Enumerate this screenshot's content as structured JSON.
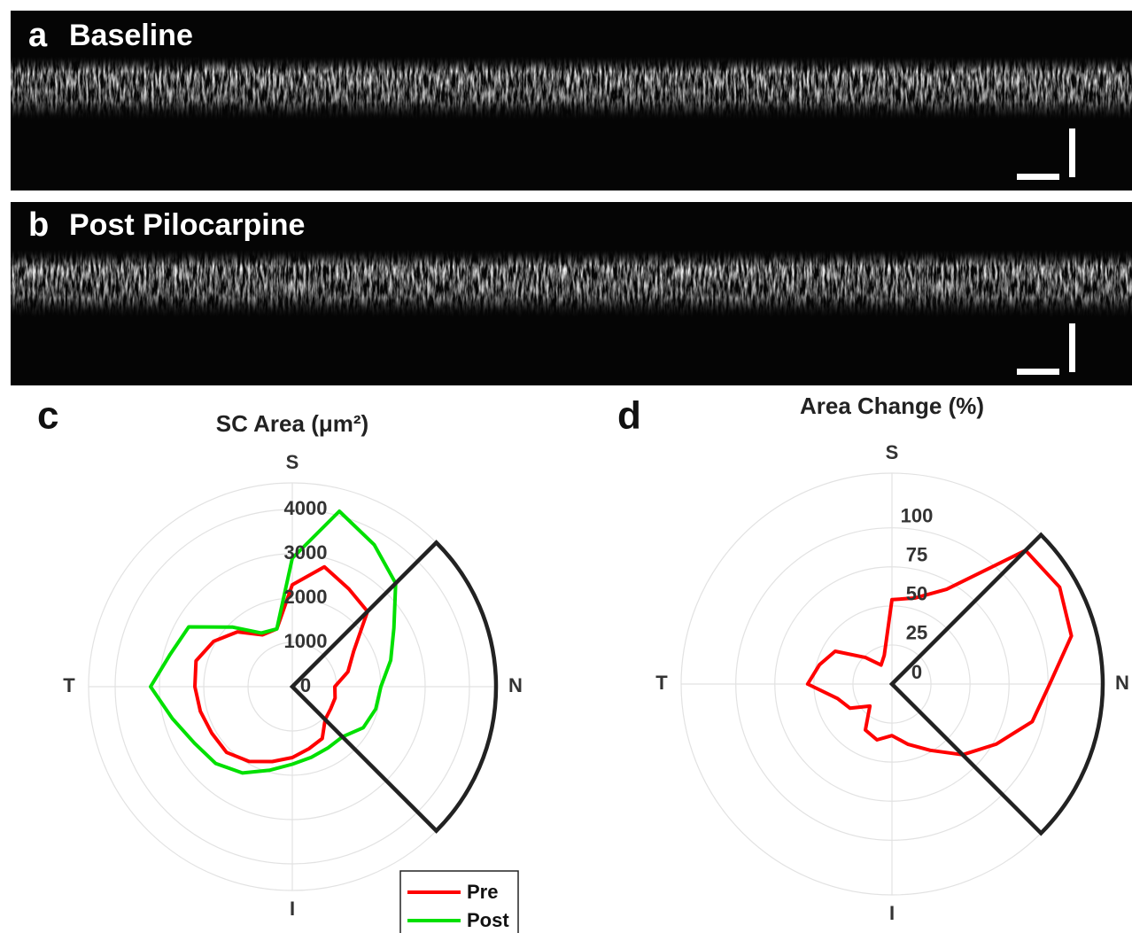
{
  "panels": [
    {
      "letter": "a",
      "title": "Baseline"
    },
    {
      "letter": "b",
      "title": "Post Pilocarpine"
    }
  ],
  "chart_data": [
    {
      "type": "polar",
      "panel": "c",
      "title": "SC Area (μm²)",
      "theta": [
        0,
        15,
        30,
        45,
        60,
        75,
        90,
        105,
        120,
        135,
        150,
        165,
        180,
        195,
        210,
        225,
        240,
        255,
        270,
        285,
        300,
        315,
        330,
        345
      ],
      "series": [
        {
          "name": "Pre",
          "color": "#ff0000",
          "values": [
            960,
            1300,
            1600,
            2400,
            2550,
            2800,
            2300,
            1350,
            1350,
            1750,
            2050,
            2250,
            2200,
            2150,
            2100,
            2100,
            1950,
            1750,
            1600,
            1450,
            1350,
            1050,
            1000,
            1000
          ]
        },
        {
          "name": "Post",
          "color": "#00e000",
          "values": [
            2000,
            2300,
            2650,
            3300,
            3700,
            4100,
            2900,
            1350,
            1400,
            1900,
            2700,
            2850,
            3200,
            2800,
            2550,
            2450,
            2250,
            1950,
            1750,
            1650,
            1600,
            1600,
            1850,
            1950
          ]
        }
      ],
      "rlim": [
        0,
        4600
      ],
      "rticks": [
        0,
        1000,
        2000,
        3000,
        4000
      ],
      "thetaticks": [
        {
          "value": 0,
          "label": "N"
        },
        {
          "value": 90,
          "label": "S"
        },
        {
          "value": 180,
          "label": "T"
        },
        {
          "value": 270,
          "label": "I"
        }
      ],
      "legend": "bottom-right"
    },
    {
      "type": "polar",
      "panel": "d",
      "title": "Area Change (%)",
      "theta": [
        0,
        15,
        30,
        45,
        60,
        75,
        90,
        105,
        120,
        135,
        150,
        165,
        180,
        195,
        210,
        225,
        240,
        255,
        270,
        285,
        300,
        315,
        330,
        345
      ],
      "series": [
        {
          "color": "#ff0000",
          "values": [
            101,
            119,
            124,
            121,
            70,
            57,
            54,
            19,
            14,
            24,
            42,
            48,
            54,
            36,
            31,
            20,
            34,
            37,
            33,
            40,
            49,
            64,
            77,
            93
          ]
        }
      ],
      "rlim": [
        0,
        135
      ],
      "rticks": [
        0,
        25,
        50,
        75,
        100
      ],
      "thetaticks": [
        {
          "value": 0,
          "label": "N"
        },
        {
          "value": 90,
          "label": "S"
        },
        {
          "value": 180,
          "label": "T"
        },
        {
          "value": 270,
          "label": "I"
        }
      ]
    }
  ]
}
